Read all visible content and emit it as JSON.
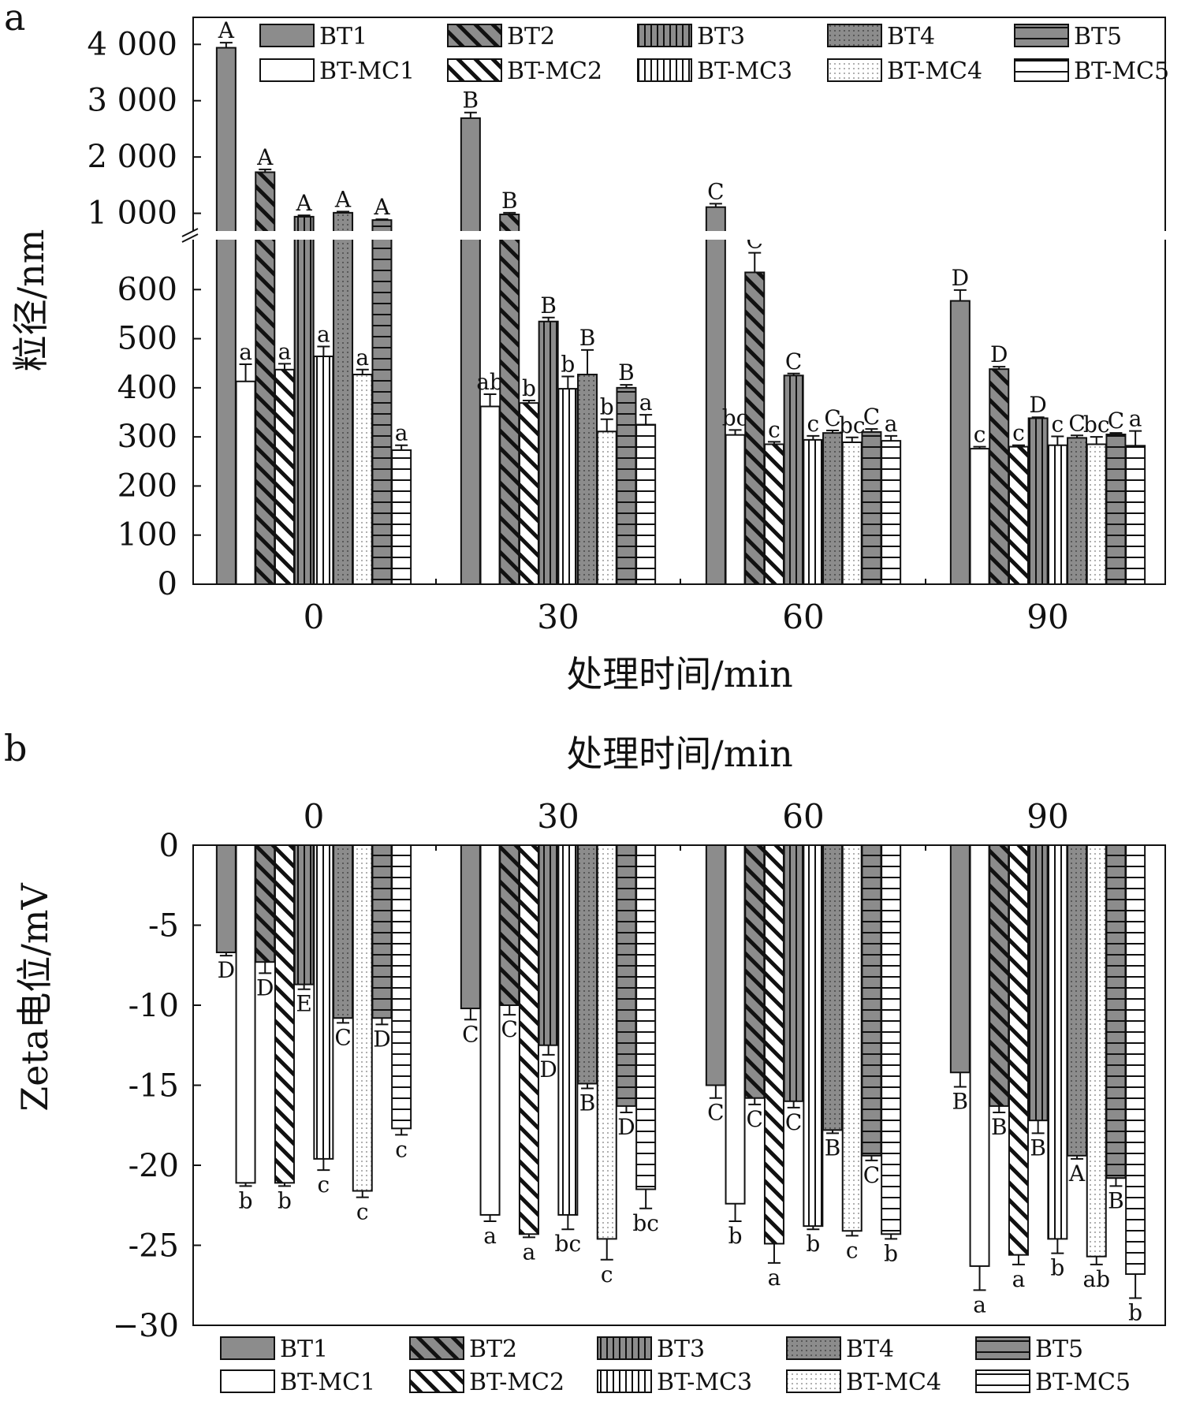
{
  "chart_data": [
    {
      "type": "bar",
      "panel_label": "a",
      "title": "",
      "xlabel": "处理时间/min",
      "ylabel": "粒径/nm",
      "categories": [
        "0",
        "30",
        "60",
        "90"
      ],
      "y_ticks_lower": [
        "0",
        "100",
        "200",
        "300",
        "400",
        "500",
        "600"
      ],
      "y_ticks_upper": [
        "1 000",
        "2 000",
        "3 000",
        "4 000"
      ],
      "ylim_lower": [
        0,
        700
      ],
      "ylim_upper": [
        700,
        4200
      ],
      "axis_break": true,
      "legend_position": "top",
      "series": [
        {
          "name": "BT1",
          "pattern": "solid",
          "values": [
            3940,
            2690,
            1110,
            577
          ],
          "errors": [
            90,
            100,
            60,
            22
          ],
          "labels": [
            "A",
            "B",
            "C",
            "D"
          ]
        },
        {
          "name": "BT-MC1",
          "pattern": "white",
          "values": [
            413,
            362,
            304,
            276
          ],
          "errors": [
            35,
            25,
            10,
            4
          ],
          "labels": [
            "a",
            "ab",
            "bc",
            "c"
          ]
        },
        {
          "name": "BT2",
          "pattern": "diag",
          "values": [
            1730,
            980,
            635,
            438
          ],
          "errors": [
            50,
            30,
            40,
            5
          ],
          "labels": [
            "A",
            "B",
            "C",
            "D"
          ]
        },
        {
          "name": "BT-MC2",
          "pattern": "diag-white",
          "values": [
            437,
            369,
            285,
            280
          ],
          "errors": [
            12,
            5,
            5,
            3
          ],
          "labels": [
            "a",
            "b",
            "c",
            "c"
          ]
        },
        {
          "name": "BT3",
          "pattern": "vert",
          "values": [
            940,
            535,
            425,
            338
          ],
          "errors": [
            25,
            8,
            4,
            2
          ],
          "labels": [
            "A",
            "B",
            "C",
            "D"
          ]
        },
        {
          "name": "BT-MC3",
          "pattern": "vert-white",
          "values": [
            464,
            398,
            294,
            283
          ],
          "errors": [
            20,
            25,
            8,
            18
          ],
          "labels": [
            "a",
            "b",
            "c",
            "c"
          ]
        },
        {
          "name": "BT4",
          "pattern": "dots",
          "values": [
            1010,
            427,
            308,
            298
          ],
          "errors": [
            20,
            50,
            5,
            5
          ],
          "labels": [
            "A",
            "B",
            "C",
            "C"
          ]
        },
        {
          "name": "BT-MC4",
          "pattern": "dots-white",
          "values": [
            427,
            311,
            289,
            285
          ],
          "errors": [
            10,
            25,
            10,
            15
          ],
          "labels": [
            "a",
            "b",
            "bc",
            "bc"
          ]
        },
        {
          "name": "BT5",
          "pattern": "horiz",
          "values": [
            880,
            400,
            310,
            305
          ],
          "errors": [
            15,
            6,
            6,
            3
          ],
          "labels": [
            "A",
            "B",
            "C",
            "C"
          ]
        },
        {
          "name": "BT-MC5",
          "pattern": "horiz-white",
          "values": [
            273,
            325,
            292,
            282
          ],
          "errors": [
            10,
            20,
            10,
            30
          ],
          "labels": [
            "a",
            "a",
            "a",
            "a"
          ]
        }
      ]
    },
    {
      "type": "bar",
      "panel_label": "b",
      "title": "",
      "xlabel": "处理时间/min",
      "ylabel": "Zeta电位/mV",
      "categories": [
        "0",
        "30",
        "60",
        "90"
      ],
      "y_ticks": [
        "0",
        "-5",
        "-10",
        "-15",
        "-20",
        "-25",
        "−30"
      ],
      "ylim": [
        -30,
        0
      ],
      "legend_position": "bottom",
      "series": [
        {
          "name": "BT1",
          "pattern": "solid",
          "values": [
            -6.7,
            -10.2,
            -15.0,
            -14.2
          ],
          "errors": [
            0.2,
            0.7,
            0.8,
            0.9
          ],
          "labels": [
            "D",
            "C",
            "C",
            "B"
          ]
        },
        {
          "name": "BT-MC1",
          "pattern": "white",
          "values": [
            -21.1,
            -23.1,
            -22.4,
            -26.3
          ],
          "errors": [
            0.2,
            0.4,
            1.1,
            1.5
          ],
          "labels": [
            "b",
            "a",
            "b",
            "a"
          ]
        },
        {
          "name": "BT2",
          "pattern": "diag",
          "values": [
            -7.3,
            -10.0,
            -15.8,
            -16.3
          ],
          "errors": [
            0.7,
            0.6,
            0.4,
            0.4
          ],
          "labels": [
            "D",
            "C",
            "C",
            "B"
          ]
        },
        {
          "name": "BT-MC2",
          "pattern": "diag-white",
          "values": [
            -21.1,
            -24.3,
            -24.9,
            -25.6
          ],
          "errors": [
            0.2,
            0.2,
            1.2,
            0.6
          ],
          "labels": [
            "b",
            "a",
            "a",
            "a"
          ]
        },
        {
          "name": "BT3",
          "pattern": "vert",
          "values": [
            -8.7,
            -12.5,
            -16.0,
            -17.2
          ],
          "errors": [
            0.3,
            0.6,
            0.4,
            0.8
          ],
          "labels": [
            "E",
            "D",
            "C",
            "B"
          ]
        },
        {
          "name": "BT-MC3",
          "pattern": "vert-white",
          "values": [
            -19.6,
            -23.1,
            -23.8,
            -24.6
          ],
          "errors": [
            0.7,
            0.9,
            0.2,
            0.9
          ],
          "labels": [
            "c",
            "bc",
            "b",
            "b"
          ]
        },
        {
          "name": "BT4",
          "pattern": "dots",
          "values": [
            -10.8,
            -14.9,
            -17.8,
            -19.4
          ],
          "errors": [
            0.3,
            0.3,
            0.2,
            0.2
          ],
          "labels": [
            "C",
            "B",
            "B",
            "A"
          ]
        },
        {
          "name": "BT-MC4",
          "pattern": "dots-white",
          "values": [
            -21.6,
            -24.6,
            -24.1,
            -25.7
          ],
          "errors": [
            0.4,
            1.3,
            0.3,
            0.5
          ],
          "labels": [
            "c",
            "c",
            "c",
            "ab"
          ]
        },
        {
          "name": "BT5",
          "pattern": "horiz",
          "values": [
            -10.8,
            -16.3,
            -19.4,
            -20.8
          ],
          "errors": [
            0.4,
            0.4,
            0.3,
            0.5
          ],
          "labels": [
            "D",
            "D",
            "C",
            "B"
          ]
        },
        {
          "name": "BT-MC5",
          "pattern": "horiz-white",
          "values": [
            -17.7,
            -21.5,
            -24.3,
            -26.8
          ],
          "errors": [
            0.4,
            1.2,
            0.3,
            1.5
          ],
          "labels": [
            "c",
            "bc",
            "b",
            "b"
          ]
        }
      ]
    }
  ],
  "legend": [
    "BT1",
    "BT2",
    "BT3",
    "BT4",
    "BT5",
    "BT-MC1",
    "BT-MC2",
    "BT-MC3",
    "BT-MC4",
    "BT-MC5"
  ]
}
